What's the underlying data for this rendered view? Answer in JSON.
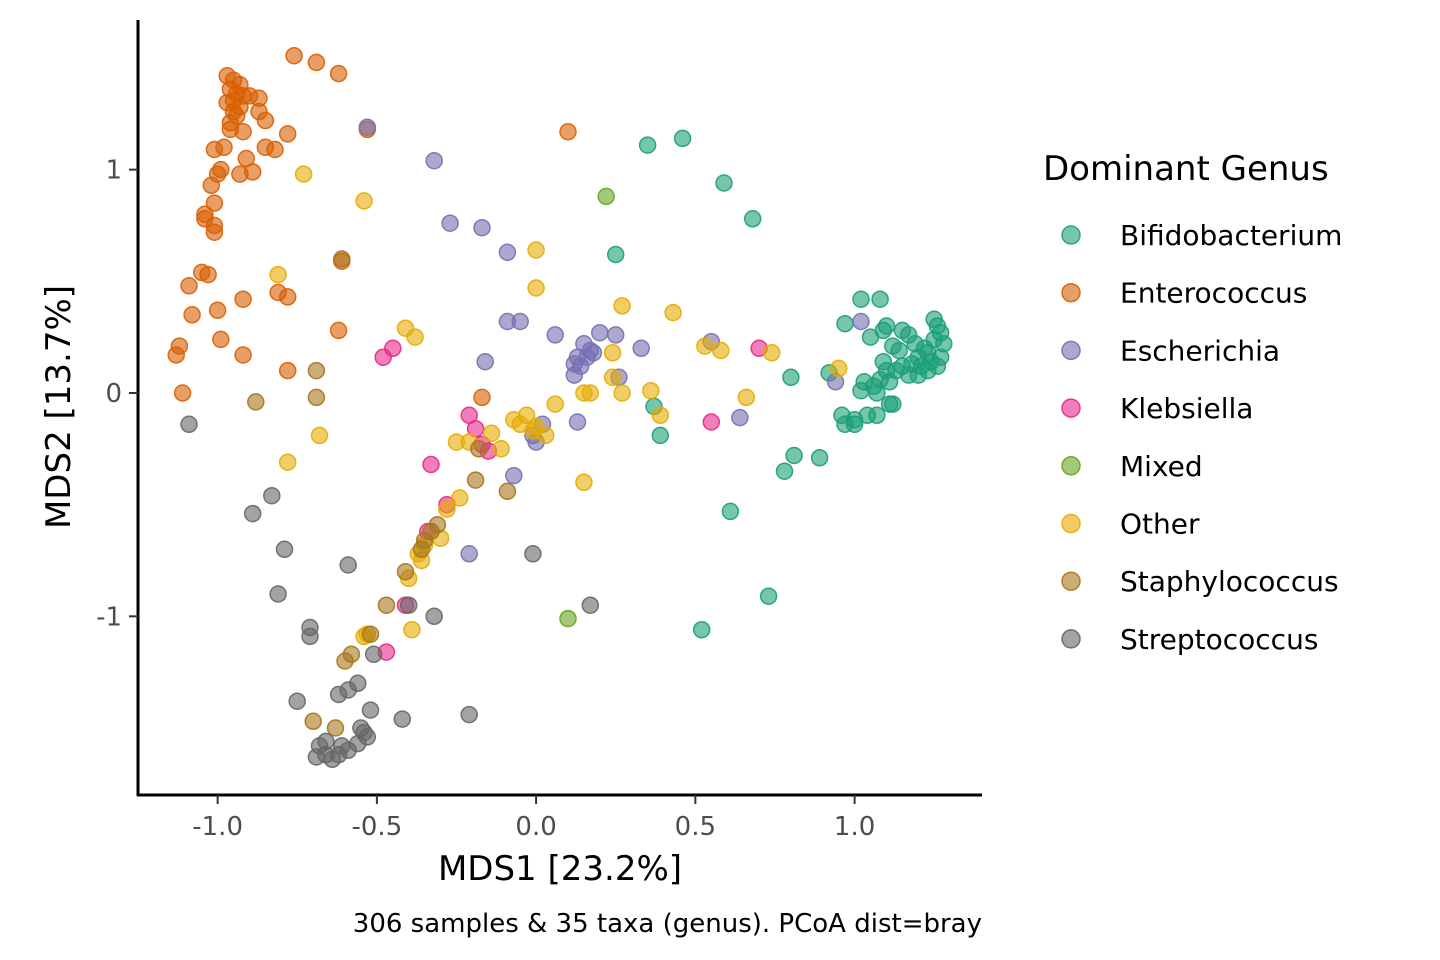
{
  "chart_data": {
    "type": "scatter",
    "xlabel": "MDS1 [23.2%]",
    "ylabel": "MDS2 [13.7%]",
    "caption": "306 samples & 35 taxa (genus). PCoA dist=bray",
    "xlim": [
      -1.25,
      1.4
    ],
    "ylim": [
      -1.8,
      1.67
    ],
    "x_ticks": [
      -1.0,
      -0.5,
      0.0,
      0.5,
      1.0
    ],
    "x_tick_labels": [
      "-1.0",
      "-0.5",
      "0.0",
      "0.5",
      "1.0"
    ],
    "y_ticks": [
      -1,
      0,
      1
    ],
    "y_tick_labels": [
      "-1",
      "0",
      "1"
    ],
    "grid": false,
    "legend": {
      "title": "Dominant Genus",
      "position": "right"
    },
    "point_alpha": 0.6,
    "series": [
      {
        "name": "Bifidobacterium",
        "color": "#1b9e77",
        "points": [
          [
            0.35,
            1.11
          ],
          [
            0.46,
            1.14
          ],
          [
            0.59,
            0.94
          ],
          [
            0.68,
            0.78
          ],
          [
            0.25,
            0.62
          ],
          [
            1.02,
            0.42
          ],
          [
            1.08,
            0.42
          ],
          [
            0.97,
            0.31
          ],
          [
            1.05,
            0.25
          ],
          [
            1.09,
            0.28
          ],
          [
            1.1,
            0.3
          ],
          [
            1.12,
            0.21
          ],
          [
            1.15,
            0.28
          ],
          [
            1.17,
            0.26
          ],
          [
            1.14,
            0.19
          ],
          [
            1.19,
            0.22
          ],
          [
            1.2,
            0.16
          ],
          [
            1.22,
            0.2
          ],
          [
            1.23,
            0.18
          ],
          [
            1.25,
            0.24
          ],
          [
            1.25,
            0.33
          ],
          [
            1.26,
            0.3
          ],
          [
            1.27,
            0.27
          ],
          [
            1.28,
            0.22
          ],
          [
            1.27,
            0.16
          ],
          [
            1.26,
            0.12
          ],
          [
            1.24,
            0.14
          ],
          [
            1.23,
            0.1
          ],
          [
            1.21,
            0.12
          ],
          [
            1.2,
            0.08
          ],
          [
            1.18,
            0.13
          ],
          [
            1.17,
            0.08
          ],
          [
            1.15,
            0.12
          ],
          [
            1.13,
            0.1
          ],
          [
            1.11,
            0.05
          ],
          [
            1.09,
            0.14
          ],
          [
            1.08,
            0.06
          ],
          [
            1.1,
            0.1
          ],
          [
            1.06,
            0.03
          ],
          [
            1.03,
            0.05
          ],
          [
            1.02,
            0.01
          ],
          [
            1.07,
            0.0
          ],
          [
            1.12,
            -0.05
          ],
          [
            1.11,
            -0.05
          ],
          [
            1.07,
            -0.1
          ],
          [
            1.04,
            -0.1
          ],
          [
            1.0,
            -0.12
          ],
          [
            0.96,
            -0.1
          ],
          [
            0.97,
            -0.14
          ],
          [
            1.0,
            -0.14
          ],
          [
            0.92,
            0.09
          ],
          [
            0.8,
            0.07
          ],
          [
            0.37,
            -0.06
          ],
          [
            0.39,
            -0.19
          ],
          [
            0.81,
            -0.28
          ],
          [
            0.78,
            -0.35
          ],
          [
            0.89,
            -0.29
          ],
          [
            0.61,
            -0.53
          ],
          [
            0.73,
            -0.91
          ],
          [
            0.52,
            -1.06
          ]
        ]
      },
      {
        "name": "Enterococcus",
        "color": "#d95f02",
        "points": [
          [
            -0.76,
            1.51
          ],
          [
            -0.69,
            1.48
          ],
          [
            -0.62,
            1.43
          ],
          [
            -0.97,
            1.42
          ],
          [
            -0.95,
            1.4
          ],
          [
            -0.93,
            1.38
          ],
          [
            -0.96,
            1.36
          ],
          [
            -0.94,
            1.34
          ],
          [
            -0.92,
            1.33
          ],
          [
            -0.9,
            1.33
          ],
          [
            -0.95,
            1.31
          ],
          [
            -0.97,
            1.3
          ],
          [
            -0.93,
            1.28
          ],
          [
            -0.87,
            1.32
          ],
          [
            -0.95,
            1.26
          ],
          [
            -0.94,
            1.24
          ],
          [
            -0.87,
            1.26
          ],
          [
            -0.85,
            1.22
          ],
          [
            -0.96,
            1.21
          ],
          [
            -0.96,
            1.18
          ],
          [
            -0.92,
            1.17
          ],
          [
            -0.78,
            1.16
          ],
          [
            -0.82,
            1.09
          ],
          [
            -0.85,
            1.1
          ],
          [
            -0.53,
            1.18
          ],
          [
            0.1,
            1.17
          ],
          [
            -1.01,
            1.09
          ],
          [
            -0.98,
            1.1
          ],
          [
            -0.91,
            1.05
          ],
          [
            -0.99,
            1.0
          ],
          [
            -1.0,
            0.98
          ],
          [
            -0.93,
            0.98
          ],
          [
            -0.89,
            0.99
          ],
          [
            -1.02,
            0.93
          ],
          [
            -1.01,
            0.85
          ],
          [
            -1.04,
            0.8
          ],
          [
            -1.04,
            0.78
          ],
          [
            -1.01,
            0.75
          ],
          [
            -1.01,
            0.72
          ],
          [
            -1.05,
            0.54
          ],
          [
            -1.03,
            0.53
          ],
          [
            -1.09,
            0.48
          ],
          [
            -0.81,
            0.45
          ],
          [
            -0.78,
            0.43
          ],
          [
            -0.92,
            0.42
          ],
          [
            -1.0,
            0.37
          ],
          [
            -1.08,
            0.35
          ],
          [
            -0.62,
            0.28
          ],
          [
            -0.99,
            0.24
          ],
          [
            -1.12,
            0.21
          ],
          [
            -1.13,
            0.17
          ],
          [
            -0.92,
            0.17
          ],
          [
            -0.78,
            0.1
          ],
          [
            -1.11,
            0.0
          ],
          [
            -0.61,
            0.59
          ],
          [
            -0.17,
            -0.02
          ]
        ]
      },
      {
        "name": "Escherichia",
        "color": "#7570b3",
        "points": [
          [
            -0.53,
            1.19
          ],
          [
            -0.32,
            1.04
          ],
          [
            -0.27,
            0.76
          ],
          [
            -0.17,
            0.74
          ],
          [
            -0.09,
            0.63
          ],
          [
            -0.09,
            0.32
          ],
          [
            -0.05,
            0.32
          ],
          [
            0.06,
            0.26
          ],
          [
            0.2,
            0.27
          ],
          [
            0.25,
            0.26
          ],
          [
            0.15,
            0.22
          ],
          [
            0.17,
            0.19
          ],
          [
            0.18,
            0.18
          ],
          [
            0.16,
            0.16
          ],
          [
            0.13,
            0.16
          ],
          [
            0.12,
            0.13
          ],
          [
            0.14,
            0.12
          ],
          [
            0.12,
            0.08
          ],
          [
            0.26,
            0.07
          ],
          [
            0.33,
            0.2
          ],
          [
            0.55,
            0.23
          ],
          [
            -0.16,
            0.14
          ],
          [
            -0.21,
            -0.72
          ],
          [
            0.13,
            -0.13
          ],
          [
            -0.01,
            -0.19
          ],
          [
            0.0,
            -0.22
          ],
          [
            0.02,
            -0.14
          ],
          [
            -0.07,
            -0.37
          ],
          [
            0.64,
            -0.11
          ],
          [
            0.94,
            0.05
          ],
          [
            1.02,
            0.32
          ]
        ]
      },
      {
        "name": "Klebsiella",
        "color": "#e7298a",
        "points": [
          [
            -0.48,
            0.16
          ],
          [
            -0.45,
            0.2
          ],
          [
            -0.33,
            -0.32
          ],
          [
            -0.21,
            -0.1
          ],
          [
            -0.19,
            -0.16
          ],
          [
            -0.17,
            -0.23
          ],
          [
            -0.15,
            -0.26
          ],
          [
            -0.28,
            -0.5
          ],
          [
            -0.34,
            -0.62
          ],
          [
            -0.41,
            -0.95
          ],
          [
            -0.47,
            -1.16
          ],
          [
            0.55,
            -0.13
          ],
          [
            0.7,
            0.2
          ]
        ]
      },
      {
        "name": "Mixed",
        "color": "#66a61e",
        "points": [
          [
            0.22,
            0.88
          ],
          [
            0.1,
            -1.01
          ]
        ]
      },
      {
        "name": "Other",
        "color": "#e6ab02",
        "points": [
          [
            -0.73,
            0.98
          ],
          [
            -0.54,
            0.86
          ],
          [
            -0.81,
            0.53
          ],
          [
            -0.41,
            0.29
          ],
          [
            -0.38,
            0.25
          ],
          [
            -0.68,
            -0.19
          ],
          [
            -0.78,
            -0.31
          ],
          [
            -0.25,
            -0.22
          ],
          [
            -0.21,
            -0.22
          ],
          [
            -0.14,
            -0.18
          ],
          [
            -0.11,
            -0.25
          ],
          [
            -0.07,
            -0.12
          ],
          [
            -0.05,
            -0.14
          ],
          [
            -0.03,
            -0.1
          ],
          [
            -0.01,
            -0.17
          ],
          [
            0.0,
            -0.15
          ],
          [
            0.03,
            -0.19
          ],
          [
            0.06,
            -0.05
          ],
          [
            0.0,
            0.64
          ],
          [
            0.0,
            0.47
          ],
          [
            0.27,
            0.39
          ],
          [
            0.43,
            0.36
          ],
          [
            0.24,
            0.18
          ],
          [
            0.24,
            0.07
          ],
          [
            0.15,
            0.0
          ],
          [
            0.17,
            0.0
          ],
          [
            0.27,
            0.0
          ],
          [
            0.36,
            0.01
          ],
          [
            0.39,
            -0.1
          ],
          [
            0.53,
            0.21
          ],
          [
            0.58,
            0.19
          ],
          [
            0.74,
            0.18
          ],
          [
            0.66,
            -0.02
          ],
          [
            0.95,
            0.11
          ],
          [
            0.15,
            -0.4
          ],
          [
            -0.24,
            -0.47
          ],
          [
            -0.28,
            -0.52
          ],
          [
            -0.3,
            -0.65
          ],
          [
            -0.35,
            -0.68
          ],
          [
            -0.37,
            -0.72
          ],
          [
            -0.36,
            -0.75
          ],
          [
            -0.4,
            -0.83
          ],
          [
            -0.39,
            -1.06
          ],
          [
            -0.54,
            -1.09
          ],
          [
            -0.53,
            -1.08
          ]
        ]
      },
      {
        "name": "Staphylococcus",
        "color": "#a6761d",
        "points": [
          [
            -0.61,
            0.6
          ],
          [
            -0.69,
            0.1
          ],
          [
            -0.69,
            -0.02
          ],
          [
            -0.88,
            -0.04
          ],
          [
            -0.18,
            -0.25
          ],
          [
            -0.19,
            -0.39
          ],
          [
            -0.09,
            -0.44
          ],
          [
            -0.31,
            -0.59
          ],
          [
            -0.33,
            -0.62
          ],
          [
            -0.35,
            -0.66
          ],
          [
            -0.36,
            -0.7
          ],
          [
            -0.41,
            -0.8
          ],
          [
            -0.47,
            -0.95
          ],
          [
            -0.52,
            -1.08
          ],
          [
            -0.58,
            -1.17
          ],
          [
            -0.6,
            -1.2
          ],
          [
            -0.7,
            -1.47
          ],
          [
            -0.63,
            -1.5
          ]
        ]
      },
      {
        "name": "Streptococcus",
        "color": "#666666",
        "points": [
          [
            -1.09,
            -0.14
          ],
          [
            -0.83,
            -0.46
          ],
          [
            -0.89,
            -0.54
          ],
          [
            -0.79,
            -0.7
          ],
          [
            -0.81,
            -0.9
          ],
          [
            -0.59,
            -0.77
          ],
          [
            -0.71,
            -1.05
          ],
          [
            -0.71,
            -1.09
          ],
          [
            -0.4,
            -0.95
          ],
          [
            -0.32,
            -1.0
          ],
          [
            -0.51,
            -1.17
          ],
          [
            -0.75,
            -1.38
          ],
          [
            -0.62,
            -1.35
          ],
          [
            -0.59,
            -1.33
          ],
          [
            -0.56,
            -1.3
          ],
          [
            -0.52,
            -1.42
          ],
          [
            -0.42,
            -1.46
          ],
          [
            -0.21,
            -1.44
          ],
          [
            -0.55,
            -1.5
          ],
          [
            -0.54,
            -1.52
          ],
          [
            -0.53,
            -1.54
          ],
          [
            -0.56,
            -1.57
          ],
          [
            -0.59,
            -1.6
          ],
          [
            -0.62,
            -1.62
          ],
          [
            -0.64,
            -1.64
          ],
          [
            -0.66,
            -1.62
          ],
          [
            -0.68,
            -1.58
          ],
          [
            -0.66,
            -1.56
          ],
          [
            -0.69,
            -1.63
          ],
          [
            -0.61,
            -1.58
          ],
          [
            -0.01,
            -0.72
          ],
          [
            0.17,
            -0.95
          ]
        ]
      }
    ]
  }
}
